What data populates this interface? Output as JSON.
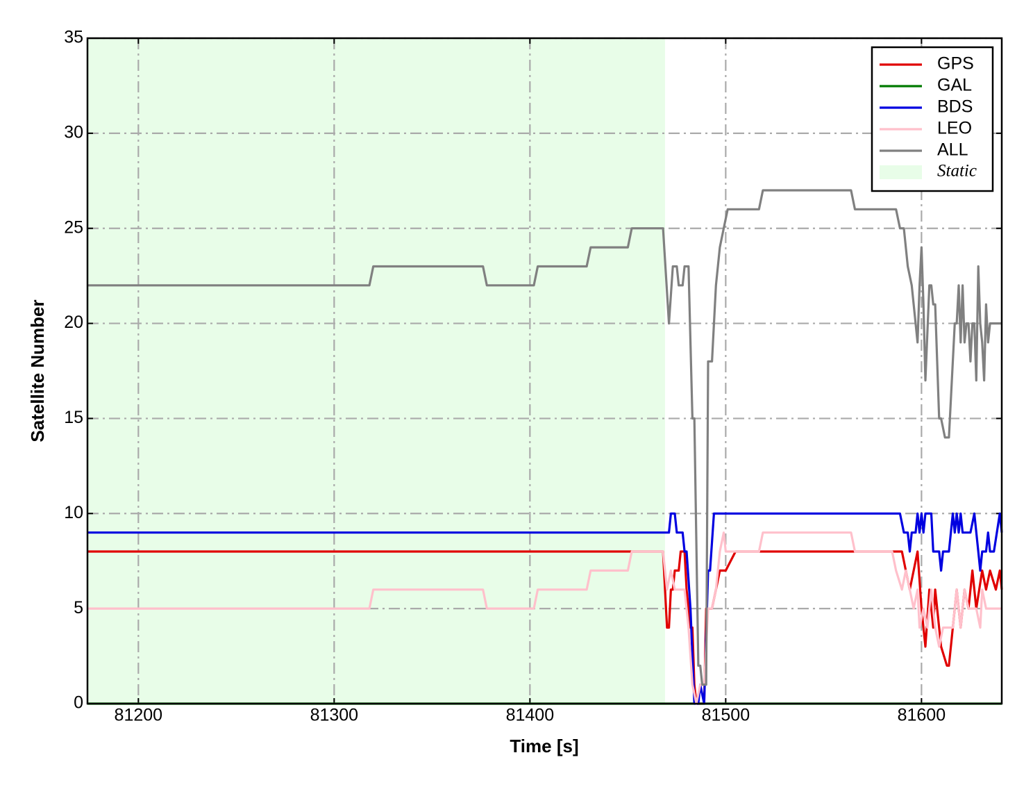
{
  "chart_data": {
    "type": "line",
    "x_label": "Time [s]",
    "y_label": "Satellite Number",
    "xlim": [
      81174,
      81641
    ],
    "ylim": [
      0,
      35
    ],
    "xticks": [
      81200,
      81300,
      81400,
      81500,
      81600
    ],
    "yticks": [
      0,
      5,
      10,
      15,
      20,
      25,
      30,
      35
    ],
    "grid": true,
    "legend": "upper right",
    "shaded": {
      "name": "Static",
      "x": [
        81174,
        81469
      ],
      "color": "#e8fde8"
    },
    "series": [
      {
        "name": "GPS",
        "color": "#e00000",
        "x": [
          81174,
          81468,
          81470,
          81471,
          81472,
          81473,
          81474,
          81476,
          81477,
          81479,
          81480,
          81482,
          81483,
          81484,
          81485,
          81489,
          81490,
          81493,
          81495,
          81497,
          81500,
          81505,
          81590,
          81592,
          81594,
          81598,
          81600,
          81602,
          81604,
          81606,
          81607,
          81610,
          81613,
          81614,
          81616,
          81618,
          81620,
          81622,
          81624,
          81626,
          81628,
          81631,
          81633,
          81635,
          81638,
          81640,
          81641
        ],
        "values": [
          8,
          8,
          4,
          4,
          6,
          6,
          7,
          7,
          8,
          8,
          6,
          4,
          4,
          1,
          0,
          0,
          5,
          5,
          6,
          7,
          7,
          8,
          8,
          7,
          6,
          8,
          5,
          3,
          6,
          4,
          6,
          3,
          2,
          2,
          4,
          6,
          4,
          6,
          5,
          7,
          5,
          7,
          6,
          7,
          6,
          7,
          6
        ]
      },
      {
        "name": "GAL",
        "color": "#007a00",
        "x": [
          81174,
          81641
        ],
        "values": [
          0,
          0
        ]
      },
      {
        "name": "BDS",
        "color": "#0000e0",
        "x": [
          81174,
          81471,
          81472,
          81474,
          81475,
          81478,
          81479,
          81480,
          81482,
          81484,
          81486,
          81487,
          81489,
          81491,
          81492,
          81494,
          81589,
          81591,
          81593,
          81594,
          81595,
          81597,
          81598,
          81599,
          81600,
          81601,
          81602,
          81605,
          81606,
          81609,
          81610,
          81611,
          81614,
          81616,
          81617,
          81618,
          81619,
          81620,
          81621,
          81625,
          81627,
          81629,
          81630,
          81631,
          81633,
          81634,
          81635,
          81637,
          81640,
          81641
        ],
        "values": [
          9,
          9,
          10,
          10,
          9,
          9,
          8,
          8,
          5,
          0,
          0,
          1,
          0,
          7,
          7,
          10,
          10,
          9,
          9,
          8,
          9,
          9,
          10,
          9,
          10,
          9,
          10,
          10,
          8,
          8,
          7,
          8,
          8,
          10,
          9,
          10,
          9,
          10,
          9,
          9,
          10,
          8,
          7,
          8,
          8,
          9,
          8,
          8,
          10,
          9
        ]
      },
      {
        "name": "LEO",
        "color": "#ffc0cb",
        "x": [
          81174,
          81318,
          81320,
          81376,
          81378,
          81402,
          81404,
          81429,
          81431,
          81450,
          81452,
          81468,
          81470,
          81472,
          81474,
          81479,
          81481,
          81483,
          81485,
          81487,
          81489,
          81491,
          81493,
          81495,
          81497,
          81499,
          81500,
          81517,
          81519,
          81564,
          81566,
          81585,
          81587,
          81590,
          81592,
          81594,
          81596,
          81598,
          81599,
          81601,
          81603,
          81605,
          81607,
          81609,
          81611,
          81616,
          81618,
          81620,
          81622,
          81624,
          81628,
          81630,
          81631,
          81633,
          81641
        ],
        "values": [
          5,
          5,
          6,
          6,
          5,
          5,
          6,
          6,
          7,
          7,
          8,
          8,
          6,
          7,
          6,
          6,
          4,
          1,
          0,
          1,
          1,
          5,
          5,
          6,
          8,
          9,
          8,
          8,
          9,
          9,
          8,
          8,
          7,
          6,
          7,
          6,
          5,
          6,
          4,
          5,
          4,
          6,
          4,
          3,
          4,
          4,
          6,
          4,
          6,
          5,
          5,
          4,
          6,
          5,
          5
        ]
      },
      {
        "name": "ALL",
        "color": "#808080",
        "x": [
          81174,
          81318,
          81320,
          81376,
          81378,
          81402,
          81404,
          81429,
          81431,
          81450,
          81452,
          81468,
          81471,
          81473,
          81475,
          81476,
          81478,
          81479,
          81481,
          81483,
          81484,
          81486,
          81487,
          81488,
          81490,
          81491,
          81493,
          81495,
          81497,
          81499,
          81501,
          81517,
          81519,
          81564,
          81566,
          81587,
          81589,
          81591,
          81593,
          81595,
          81598,
          81599,
          81600,
          81601,
          81602,
          81604,
          81605,
          81606,
          81607,
          81609,
          81610,
          81612,
          81614,
          81617,
          81618,
          81619,
          81620,
          81621,
          81622,
          81623,
          81624,
          81625,
          81626,
          81627,
          81628,
          81629,
          81630,
          81631,
          81632,
          81633,
          81634,
          81635,
          81641
        ],
        "values": [
          22,
          22,
          23,
          23,
          22,
          22,
          23,
          23,
          24,
          24,
          25,
          25,
          20,
          23,
          23,
          22,
          22,
          23,
          23,
          15,
          15,
          2,
          2,
          1,
          1,
          18,
          18,
          22,
          24,
          25,
          26,
          26,
          27,
          27,
          26,
          26,
          25,
          25,
          23,
          22,
          19,
          22,
          24,
          21,
          17,
          22,
          22,
          21,
          21,
          15,
          15,
          14,
          14,
          20,
          20,
          22,
          19,
          22,
          19,
          20,
          20,
          18,
          20,
          20,
          17,
          23,
          20,
          19,
          17,
          21,
          19,
          20,
          20
        ]
      }
    ]
  }
}
